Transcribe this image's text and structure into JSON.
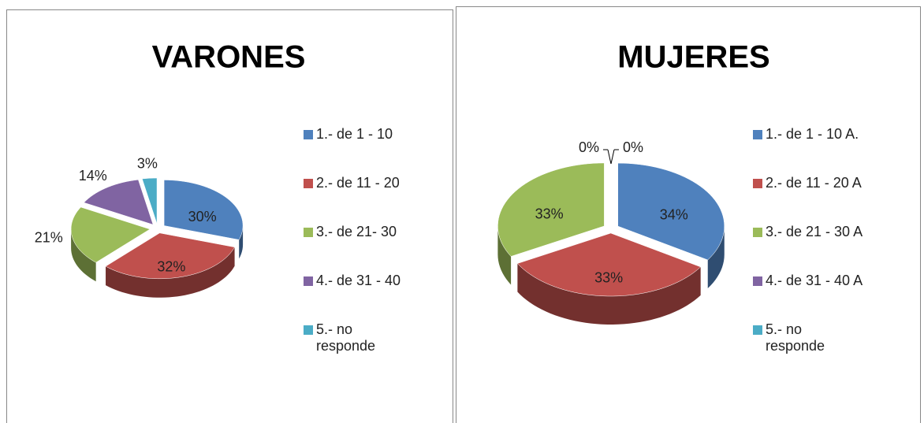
{
  "chart_data": [
    {
      "type": "pie",
      "title": "VARONES",
      "categories": [
        "1.-  de 1 - 10",
        "2.- de 11 - 20",
        "3.- de 21- 30",
        "4.- de 31 - 40",
        "5.- no responde"
      ],
      "values": [
        30,
        32,
        21,
        14,
        3
      ],
      "value_labels": [
        "30%",
        "32%",
        "21%",
        "14%",
        "3%"
      ],
      "colors": [
        "#4f81bd",
        "#c0504d",
        "#9bbb59",
        "#8064a2",
        "#4bacc6"
      ],
      "legend": "right"
    },
    {
      "type": "pie",
      "title": "MUJERES",
      "categories": [
        "1.- de 1 - 10 A.",
        "2.-  de 11 - 20 A",
        "3.-  de 21 - 30 A",
        "4.-  de 31 - 40 A",
        "5.- no responde"
      ],
      "values": [
        34,
        33,
        33,
        0,
        0
      ],
      "value_labels": [
        "34%",
        "33%",
        "33%",
        "0%",
        "0%"
      ],
      "colors": [
        "#4f81bd",
        "#c0504d",
        "#9bbb59",
        "#8064a2",
        "#4bacc6"
      ],
      "legend": "right"
    }
  ]
}
